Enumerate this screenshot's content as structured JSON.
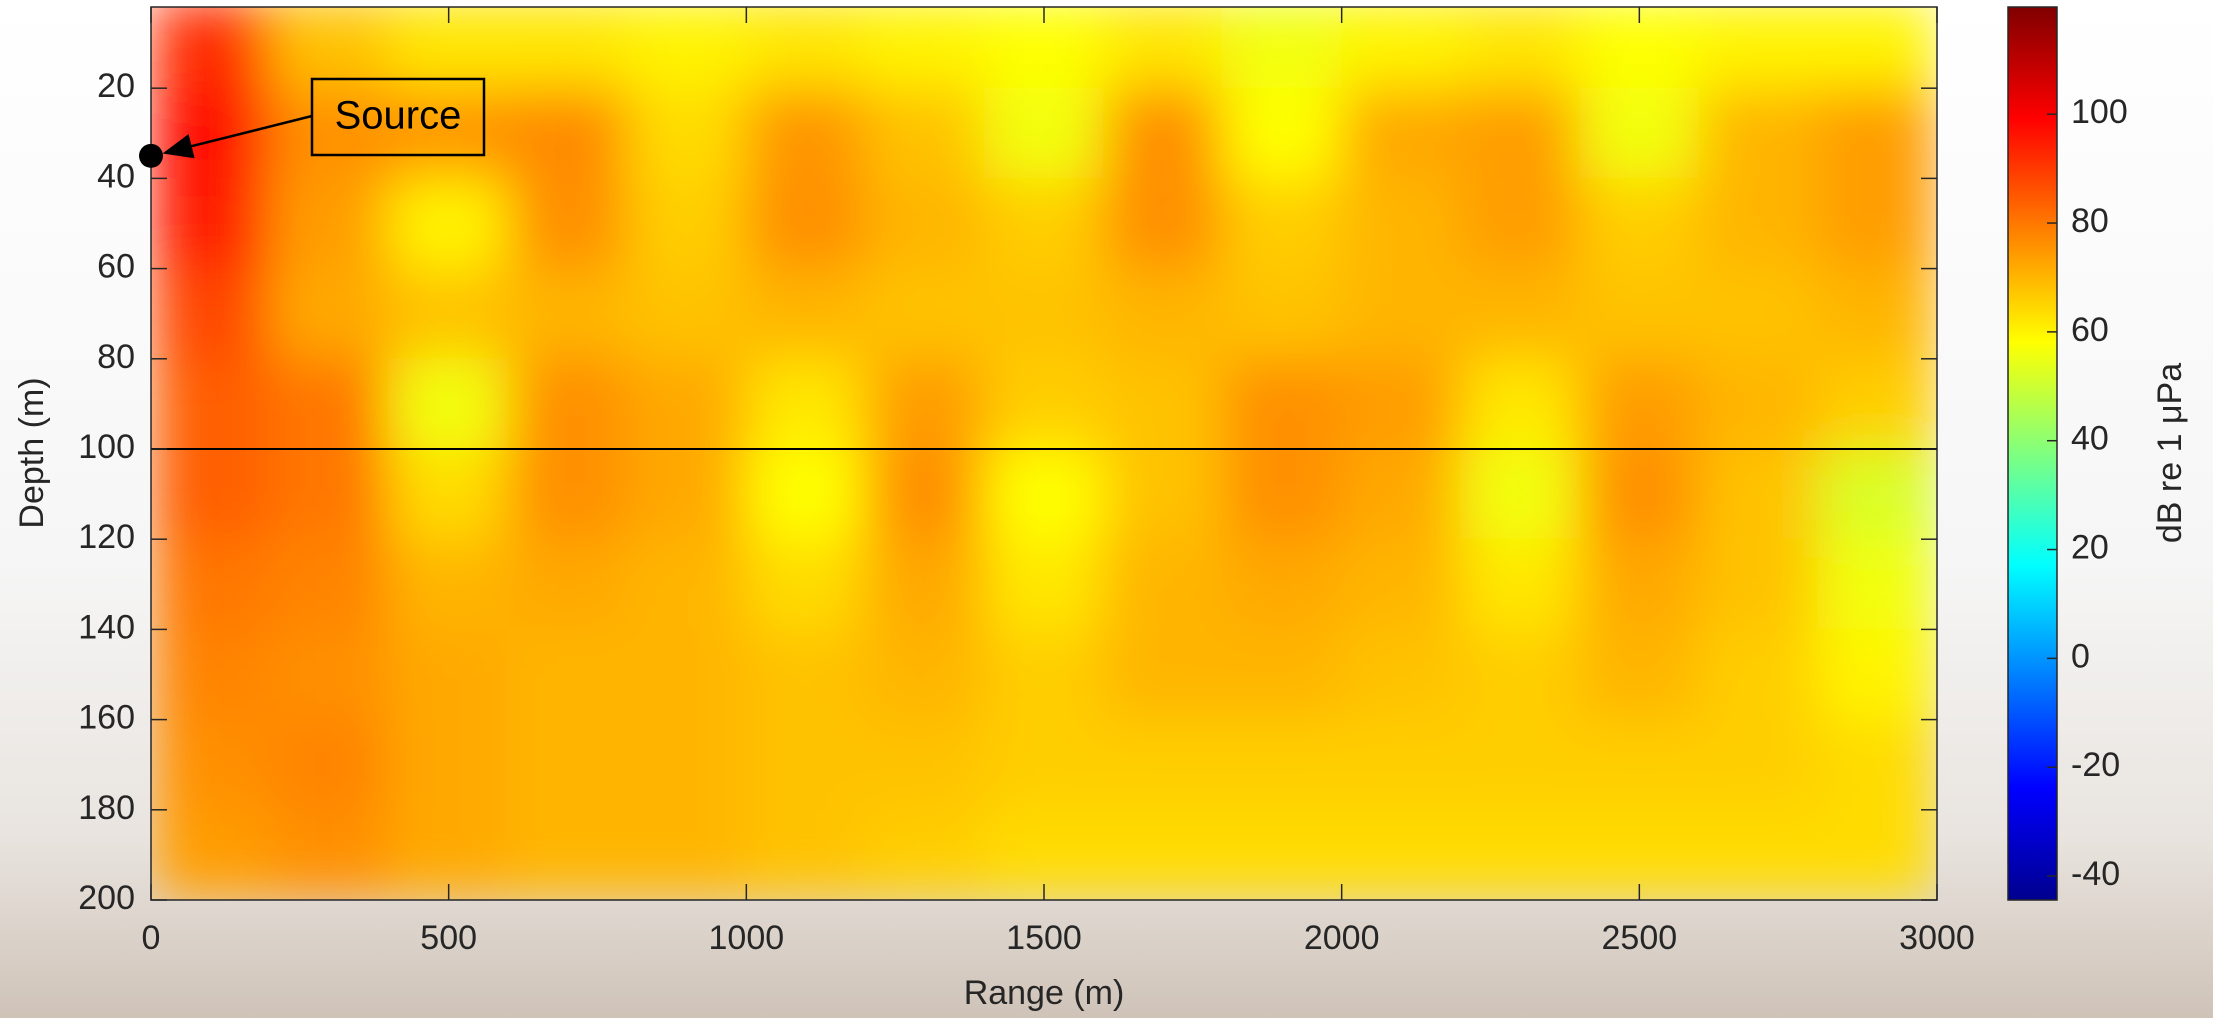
{
  "chart_data": {
    "type": "heatmap",
    "xlabel": "Range (m)",
    "ylabel": "Depth (m)",
    "colorbar_label": "dB re 1 μPa",
    "x_bins": [
      0,
      200,
      400,
      600,
      800,
      1000,
      1200,
      1400,
      1600,
      1800,
      2000,
      2200,
      2400,
      2600,
      2800,
      3000
    ],
    "y_bins": [
      0,
      20,
      40,
      60,
      80,
      100,
      120,
      140,
      160,
      180,
      200
    ],
    "values": [
      [
        92,
        68,
        62,
        62,
        60,
        62,
        60,
        58,
        62,
        56,
        60,
        62,
        58,
        60,
        60
      ],
      [
        98,
        76,
        75,
        77,
        64,
        75,
        68,
        56,
        76,
        58,
        72,
        74,
        56,
        70,
        74
      ],
      [
        95,
        74,
        60,
        76,
        66,
        76,
        70,
        66,
        76,
        66,
        70,
        74,
        66,
        70,
        74
      ],
      [
        88,
        72,
        68,
        70,
        68,
        70,
        68,
        68,
        70,
        68,
        70,
        70,
        68,
        68,
        70
      ],
      [
        84,
        80,
        56,
        76,
        72,
        62,
        74,
        66,
        68,
        76,
        74,
        62,
        74,
        70,
        66
      ],
      [
        84,
        80,
        64,
        76,
        72,
        58,
        76,
        58,
        68,
        76,
        72,
        56,
        76,
        68,
        52
      ],
      [
        80,
        78,
        70,
        72,
        70,
        64,
        72,
        62,
        70,
        72,
        70,
        62,
        72,
        68,
        56
      ],
      [
        78,
        76,
        72,
        70,
        70,
        68,
        70,
        66,
        70,
        70,
        68,
        66,
        70,
        66,
        60
      ],
      [
        76,
        78,
        72,
        70,
        70,
        68,
        68,
        66,
        66,
        66,
        66,
        66,
        66,
        66,
        64
      ],
      [
        74,
        76,
        72,
        70,
        70,
        68,
        66,
        64,
        64,
        64,
        64,
        64,
        64,
        64,
        64
      ]
    ],
    "xlim": [
      0,
      3000
    ],
    "ylim": [
      2,
      200
    ],
    "y_reversed": true,
    "xticks": [
      0,
      500,
      1000,
      1500,
      2000,
      2500,
      3000
    ],
    "yticks": [
      20,
      40,
      60,
      80,
      100,
      120,
      140,
      160,
      180,
      200
    ],
    "clim": [
      -44.4,
      119.7
    ],
    "cticks": [
      -40,
      -20,
      0,
      20,
      40,
      60,
      80,
      100
    ],
    "colormap": "jet",
    "reference_line_depth": 100,
    "source": {
      "label": "Source",
      "x": 0,
      "y": 35
    }
  }
}
